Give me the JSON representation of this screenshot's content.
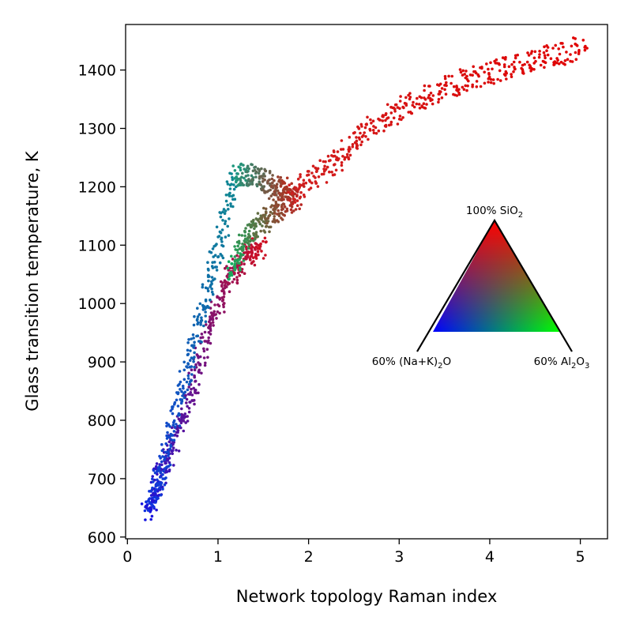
{
  "chart_data": {
    "type": "scatter",
    "title": "",
    "xlabel": "Network topology Raman index",
    "ylabel": "Glass transition temperature, K",
    "xlim": [
      -0.02,
      5.3
    ],
    "ylim": [
      597,
      1478
    ],
    "x_ticks": [
      0,
      1,
      2,
      3,
      4,
      5
    ],
    "y_ticks": [
      600,
      700,
      800,
      900,
      1000,
      1100,
      1200,
      1300,
      1400
    ],
    "grid": false,
    "legend": "none",
    "color_encoding": "RGB mixture by composition: red = SiO2, green = Al2O3, blue = (Na+K)2O",
    "bands": [
      {
        "color_from": "#1515e0",
        "color_to": "#d01020",
        "points": [
          [
            0.22,
            640
          ],
          [
            0.35,
            700
          ],
          [
            0.5,
            760
          ],
          [
            0.7,
            850
          ],
          [
            0.9,
            960
          ],
          [
            1.1,
            1040
          ],
          [
            1.3,
            1080
          ],
          [
            1.5,
            1100
          ]
        ]
      },
      {
        "color_from": "#1030e0",
        "color_to": "#108a90",
        "points": [
          [
            0.25,
            650
          ],
          [
            0.4,
            730
          ],
          [
            0.6,
            850
          ],
          [
            0.8,
            970
          ],
          [
            1.0,
            1090
          ],
          [
            1.2,
            1230
          ]
        ]
      },
      {
        "color_from": "#10b060",
        "color_to": "#c02020",
        "points": [
          [
            1.15,
            1050
          ],
          [
            1.3,
            1110
          ],
          [
            1.5,
            1140
          ],
          [
            1.7,
            1165
          ],
          [
            1.9,
            1185
          ]
        ]
      },
      {
        "color_from": "#1a9a80",
        "color_to": "#b03020",
        "points": [
          [
            1.2,
            1220
          ],
          [
            1.4,
            1220
          ],
          [
            1.6,
            1200
          ],
          [
            1.8,
            1195
          ]
        ]
      },
      {
        "color_from": "#d02020",
        "color_to": "#e00000",
        "points": [
          [
            1.8,
            1185
          ],
          [
            2.2,
            1230
          ],
          [
            2.6,
            1290
          ],
          [
            3.0,
            1335
          ],
          [
            3.5,
            1370
          ],
          [
            4.0,
            1395
          ],
          [
            4.5,
            1418
          ],
          [
            5.05,
            1440
          ]
        ]
      }
    ],
    "ternary_inset": {
      "label_top": "100% SiO",
      "label_top_sub": "2",
      "label_left_a": "60% (Na+K)",
      "label_left_sub": "2",
      "label_left_b": "O",
      "label_right_a": "60% Al",
      "label_right_sub": "2",
      "label_right_b": "O",
      "label_right_sub2": "3",
      "corner_colors": {
        "top": "#ff0000",
        "left": "#0000ff",
        "right": "#00ff00"
      }
    }
  }
}
